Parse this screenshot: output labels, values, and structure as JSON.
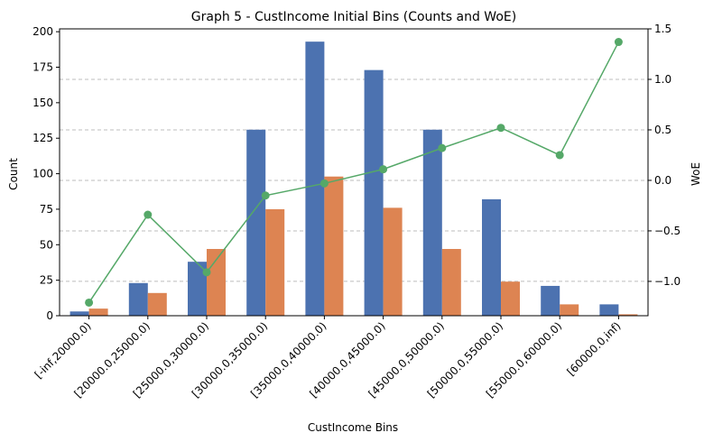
{
  "chart_data": {
    "type": "bar",
    "title": "Graph 5 - CustIncome Initial Bins (Counts and WoE)",
    "xlabel": "CustIncome Bins",
    "ylabel": "Count",
    "y2label": "WoE",
    "categories": [
      "[-inf,20000.0)",
      "[20000.0,25000.0)",
      "[25000.0,30000.0)",
      "[30000.0,35000.0)",
      "[35000.0,40000.0)",
      "[40000.0,45000.0)",
      "[45000.0,50000.0)",
      "[50000.0,55000.0)",
      "[55000.0,60000.0)",
      "[60000.0,inf)"
    ],
    "series": [
      {
        "values": [
          3,
          23,
          38,
          131,
          193,
          173,
          131,
          82,
          21,
          8
        ],
        "color": "#4c72b0",
        "kind": "bar"
      },
      {
        "values": [
          5,
          16,
          47,
          75,
          98,
          76,
          47,
          24,
          8,
          1
        ],
        "color": "#dd8452",
        "kind": "bar"
      },
      {
        "values": [
          -1.21,
          -0.34,
          -0.91,
          -0.15,
          -0.03,
          0.11,
          0.32,
          0.52,
          0.25,
          1.37
        ],
        "color": "#55a868",
        "kind": "line",
        "axis": "right"
      }
    ],
    "ylim": [
      0,
      202
    ],
    "y2lim": [
      -1.34,
      1.5
    ],
    "yticks": [
      0,
      25,
      50,
      75,
      100,
      125,
      150,
      175,
      200
    ],
    "y2ticks": [
      -1.0,
      -0.5,
      0.0,
      0.5,
      1.0,
      1.5
    ],
    "y2tick_labels": [
      "−1.0",
      "−0.5",
      "0.0",
      "0.5",
      "1.0",
      "1.5"
    ],
    "grid": "horizontal dashed",
    "legend": "none"
  }
}
